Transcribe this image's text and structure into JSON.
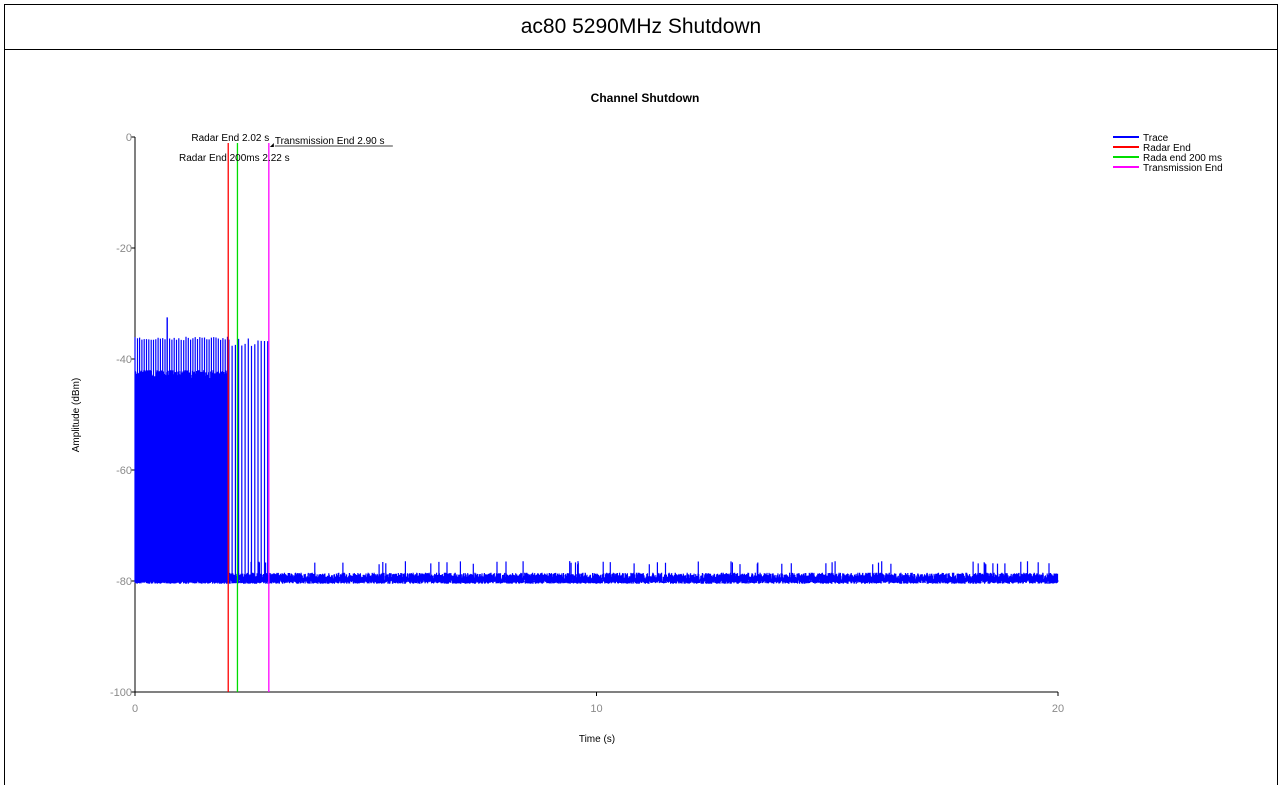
{
  "page_title": "ac80 5290MHz Shutdown",
  "chart_data": {
    "type": "line",
    "title": "Channel Shutdown",
    "xlabel": "Time (s)",
    "ylabel": "Amplitude (dBm)",
    "xlim": [
      0,
      20
    ],
    "ylim": [
      -100,
      0
    ],
    "x_ticks": [
      "0",
      "10",
      "20"
    ],
    "y_ticks": [
      "0",
      "-20",
      "-40",
      "-60",
      "-80",
      "-100"
    ],
    "grid": false,
    "legend_position": "top-right",
    "series": [
      {
        "name": "Trace",
        "color": "#0000ff",
        "description_values": {
          "transmission_bursts_until_s": 2.02,
          "burst_peak_dbm": -36,
          "burst_body_top_dbm": -42,
          "sparse_bursts_until_s": 2.9,
          "noise_floor_dbm": -79,
          "noise_floor_range_dbm": [
            -80.5,
            -77
          ]
        }
      },
      {
        "name": "Radar End",
        "color": "#ff0000",
        "x": 2.02
      },
      {
        "name": "Rada end 200 ms",
        "color": "#00dd00",
        "x": 2.22
      },
      {
        "name": "Transmission End",
        "color": "#ff00ff",
        "x": 2.9
      }
    ],
    "annotations": [
      {
        "text": "Radar End 2.02 s",
        "x": 2.02
      },
      {
        "text": "Radar End 200ms 2.22 s",
        "x": 2.22
      },
      {
        "text": "Transmission End 2.90 s",
        "x": 2.9
      }
    ]
  }
}
